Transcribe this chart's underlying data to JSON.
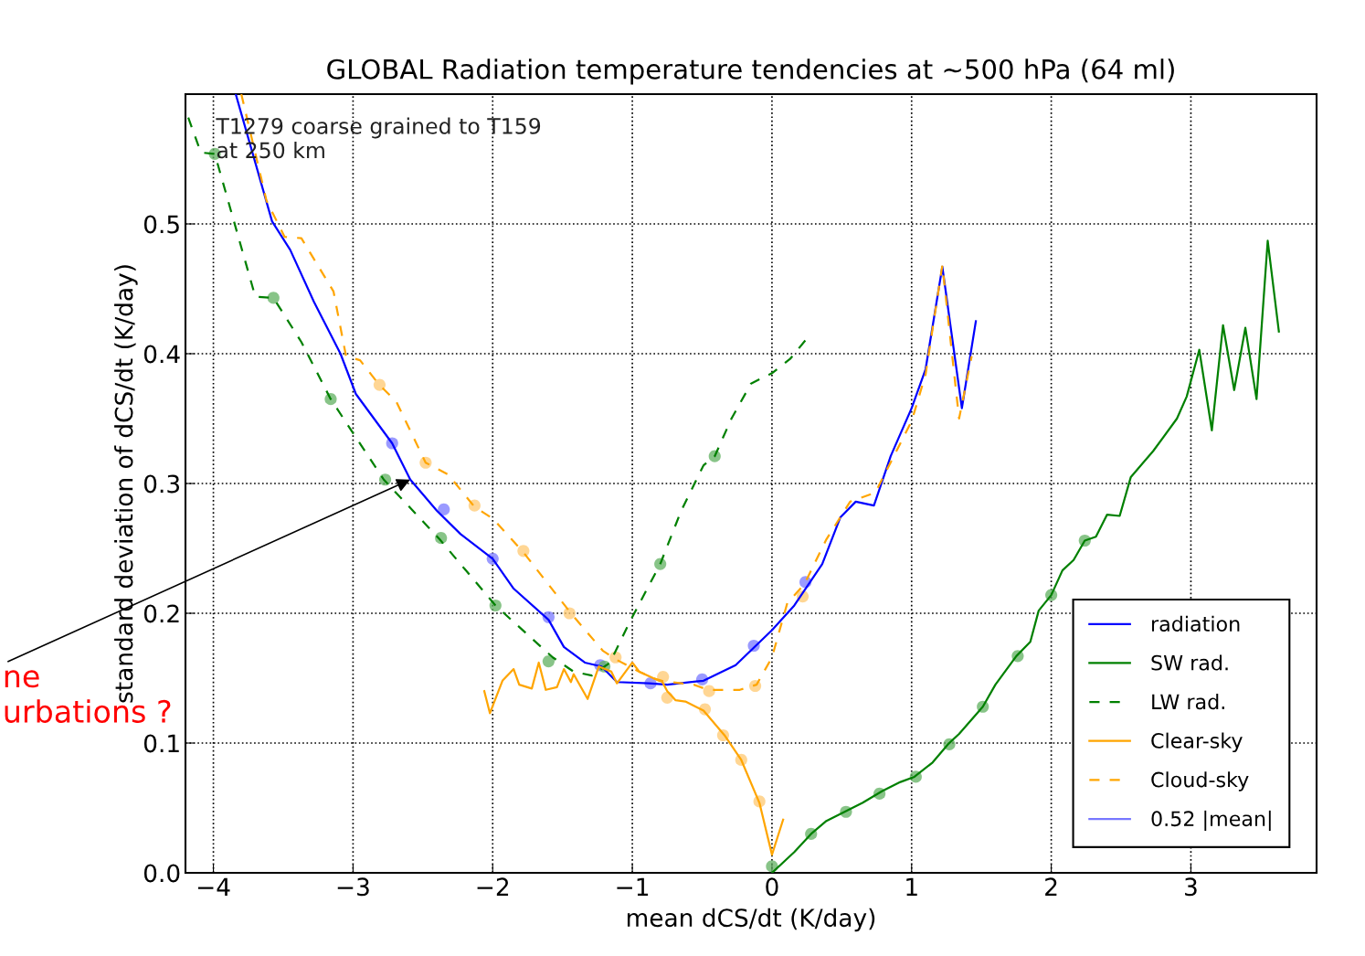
{
  "chart_data": {
    "type": "line",
    "title": "GLOBAL Radiation temperature tendencies at ~500 hPa (64 ml)",
    "xlabel": "mean dCS/dt (K/day)",
    "ylabel": "standard deviation of dCS/dt (K/day)",
    "xlim": [
      -4.2,
      3.9
    ],
    "ylim": [
      0,
      0.6
    ],
    "xticks": [
      {
        "value": -4,
        "label": "−4"
      },
      {
        "value": -3,
        "label": "−3"
      },
      {
        "value": -2,
        "label": "−2"
      },
      {
        "value": -1,
        "label": "−1"
      },
      0,
      1,
      2,
      3
    ],
    "yticks": [
      {
        "value": 0,
        "label": "0.0"
      },
      0.1,
      0.2,
      0.3,
      0.4,
      0.5
    ],
    "grid": true,
    "legend": "bottom right",
    "annotations": [
      "T1279 coarse grained to T159\nat 250 km",
      {
        "text": "ne\nurbations ?",
        "x": -2.59,
        "y": 0.303
      }
    ],
    "series": [
      {
        "name": "radiation",
        "color": "#0000ff",
        "line_style": "solid",
        "x": [
          -3.84,
          -3.58,
          -3.45,
          -3.28,
          -3.09,
          -2.98,
          -2.72,
          -2.59,
          -2.4,
          -2.23,
          -2.0,
          -1.85,
          -1.6,
          -1.49,
          -1.34,
          -1.22,
          -1.11,
          -0.88,
          -0.75,
          -0.49,
          -0.26,
          0.0,
          0.16,
          0.36,
          0.49,
          0.6,
          0.73,
          0.85,
          1.0,
          1.1,
          1.22,
          1.36,
          1.46
        ],
        "values": [
          0.6,
          0.502,
          0.48,
          0.44,
          0.4,
          0.369,
          0.331,
          0.303,
          0.279,
          0.261,
          0.242,
          0.219,
          0.195,
          0.174,
          0.162,
          0.159,
          0.147,
          0.146,
          0.145,
          0.148,
          0.16,
          0.187,
          0.206,
          0.238,
          0.274,
          0.286,
          0.283,
          0.321,
          0.358,
          0.388,
          0.467,
          0.358,
          0.425
        ]
      },
      {
        "name": "SW rad.",
        "color": "#008000",
        "line_style": "solid",
        "x": [
          0.0,
          0.16,
          0.28,
          0.39,
          0.52,
          0.65,
          0.79,
          0.92,
          1.02,
          1.15,
          1.26,
          1.34,
          1.51,
          1.6,
          1.75,
          1.85,
          1.91,
          2.0,
          2.08,
          2.16,
          2.24,
          2.32,
          2.4,
          2.49,
          2.57,
          2.73,
          2.9,
          2.97,
          3.06,
          3.15,
          3.23,
          3.31,
          3.39,
          3.47,
          3.55,
          3.63
        ],
        "values": [
          0.0,
          0.016,
          0.03,
          0.04,
          0.047,
          0.054,
          0.063,
          0.07,
          0.074,
          0.085,
          0.099,
          0.107,
          0.128,
          0.145,
          0.167,
          0.178,
          0.202,
          0.214,
          0.233,
          0.241,
          0.256,
          0.259,
          0.276,
          0.275,
          0.305,
          0.325,
          0.35,
          0.367,
          0.403,
          0.341,
          0.422,
          0.372,
          0.42,
          0.365,
          0.487,
          0.417
        ]
      },
      {
        "name": "LW rad.",
        "color": "#008000",
        "line_style": "dashed",
        "x": [
          -4.18,
          -4.09,
          -3.99,
          -3.7,
          -3.57,
          -3.37,
          -3.16,
          -2.78,
          -2.38,
          -1.98,
          -1.57,
          -1.42,
          -1.29,
          -1.16,
          -1.02,
          -0.8,
          -0.65,
          -0.49,
          -0.41,
          -0.29,
          -0.15,
          0.0,
          0.13,
          0.26
        ],
        "values": [
          0.582,
          0.555,
          0.554,
          0.444,
          0.443,
          0.409,
          0.365,
          0.303,
          0.257,
          0.206,
          0.166,
          0.155,
          0.152,
          0.162,
          0.193,
          0.238,
          0.279,
          0.314,
          0.321,
          0.35,
          0.377,
          0.385,
          0.396,
          0.413
        ]
      },
      {
        "name": "Clear-sky",
        "color": "#ffa500",
        "line_style": "solid",
        "x": [
          -2.06,
          -2.02,
          -1.93,
          -1.85,
          -1.81,
          -1.72,
          -1.67,
          -1.62,
          -1.54,
          -1.49,
          -1.44,
          -1.42,
          -1.32,
          -1.24,
          -1.15,
          -1.11,
          -1.0,
          -0.95,
          -0.85,
          -0.79,
          -0.75,
          -0.69,
          -0.62,
          -0.49,
          -0.34,
          -0.22,
          -0.09,
          0.0,
          0.08
        ],
        "values": [
          0.14,
          0.123,
          0.148,
          0.157,
          0.145,
          0.142,
          0.162,
          0.141,
          0.143,
          0.157,
          0.147,
          0.153,
          0.134,
          0.159,
          0.155,
          0.146,
          0.162,
          0.155,
          0.15,
          0.148,
          0.14,
          0.133,
          0.132,
          0.125,
          0.106,
          0.087,
          0.054,
          0.014,
          0.041
        ]
      },
      {
        "name": "Cloud-sky",
        "color": "#ffa500",
        "line_style": "dashed",
        "x": [
          -3.8,
          -3.62,
          -3.49,
          -3.37,
          -3.14,
          -3.05,
          -2.95,
          -2.82,
          -2.69,
          -2.48,
          -2.32,
          -2.13,
          -2.0,
          -1.78,
          -1.44,
          -1.21,
          -1.11,
          -0.95,
          -0.81,
          -0.56,
          -0.46,
          -0.23,
          -0.11,
          0.0,
          0.11,
          0.23,
          0.39,
          0.56,
          0.74,
          1.0,
          1.1,
          1.22,
          1.34,
          1.43
        ],
        "values": [
          0.6,
          0.518,
          0.49,
          0.489,
          0.448,
          0.398,
          0.395,
          0.377,
          0.363,
          0.316,
          0.307,
          0.282,
          0.273,
          0.247,
          0.2,
          0.171,
          0.164,
          0.155,
          0.148,
          0.145,
          0.141,
          0.141,
          0.145,
          0.166,
          0.208,
          0.222,
          0.257,
          0.286,
          0.293,
          0.348,
          0.384,
          0.468,
          0.35,
          0.398
        ]
      },
      {
        "name": "0.52 |mean|",
        "color": "#7777ff",
        "line_style": "solid"
      },
      {
        "color": "#7878ff",
        "type": "scatter",
        "marker": "circle",
        "x": [
          -2.72,
          -2.35,
          -2.0,
          -1.6,
          -1.23,
          -0.87,
          -0.5,
          -0.13,
          0.24
        ],
        "values": [
          0.331,
          0.28,
          0.242,
          0.197,
          0.16,
          0.146,
          0.149,
          0.175,
          0.224
        ]
      },
      {
        "color": "#ffc870",
        "type": "scatter",
        "marker": "circle",
        "x": [
          -2.81,
          -2.48,
          -2.13,
          -1.78,
          -1.45,
          -1.12,
          -0.78,
          -0.45,
          -0.12,
          0.22,
          -0.75,
          -0.48,
          -0.35,
          -0.22,
          -0.09
        ],
        "values": [
          0.376,
          0.316,
          0.283,
          0.248,
          0.2,
          0.166,
          0.151,
          0.14,
          0.144,
          0.213,
          0.135,
          0.126,
          0.106,
          0.087,
          0.055
        ]
      },
      {
        "color": "#60b060",
        "type": "scatter",
        "marker": "circle",
        "x": [
          -3.99,
          -3.57,
          -3.16,
          -2.77,
          -2.37,
          -1.98,
          -1.6,
          -1.2,
          -0.8,
          -0.41,
          0.0,
          0.28,
          0.53,
          0.77,
          1.03,
          1.27,
          1.51,
          1.76,
          2.0,
          2.24
        ],
        "values": [
          0.554,
          0.443,
          0.365,
          0.303,
          0.258,
          0.206,
          0.163,
          0.159,
          0.238,
          0.321,
          0.005,
          0.03,
          0.047,
          0.061,
          0.074,
          0.099,
          0.128,
          0.167,
          0.214,
          0.256
        ]
      }
    ]
  }
}
